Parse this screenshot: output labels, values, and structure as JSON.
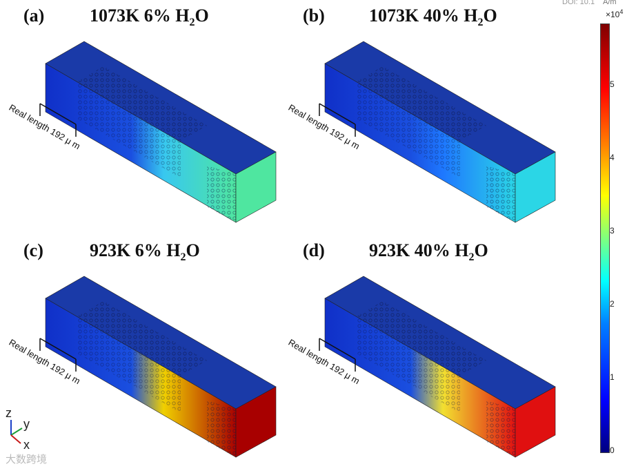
{
  "doi_text": "DOI: 10.1",
  "colorbar": {
    "unit": "A/m",
    "multiplier": "×10",
    "exponent": "4",
    "ticks": [
      "0",
      "1",
      "2",
      "3",
      "4",
      "5"
    ]
  },
  "panels": [
    {
      "letter": "(a)",
      "title_main": "1073K 6% H",
      "title_sub": "2",
      "title_end": "O",
      "annotation": "Real length 192 μ m",
      "end_color": "#4fe6a0",
      "mid_color": "#38c8f0"
    },
    {
      "letter": "(b)",
      "title_main": "1073K 40% H",
      "title_sub": "2",
      "title_end": "O",
      "annotation": "Real length 192 μ m",
      "end_color": "#2bd6e6",
      "mid_color": "#1e78ff"
    },
    {
      "letter": "(c)",
      "title_main": "923K 6% H",
      "title_sub": "2",
      "title_end": "O",
      "annotation": "Real length 192 μ m",
      "end_color": "#a80000",
      "mid_color": "#f0d000"
    },
    {
      "letter": "(d)",
      "title_main": "923K 40% H",
      "title_sub": "2",
      "title_end": "O",
      "annotation": "Real length 192 μ m",
      "end_color": "#e01010",
      "mid_color": "#f2e030"
    }
  ],
  "axes": {
    "z": "z",
    "y": "y",
    "x": "x"
  },
  "watermark": "大数跨境"
}
